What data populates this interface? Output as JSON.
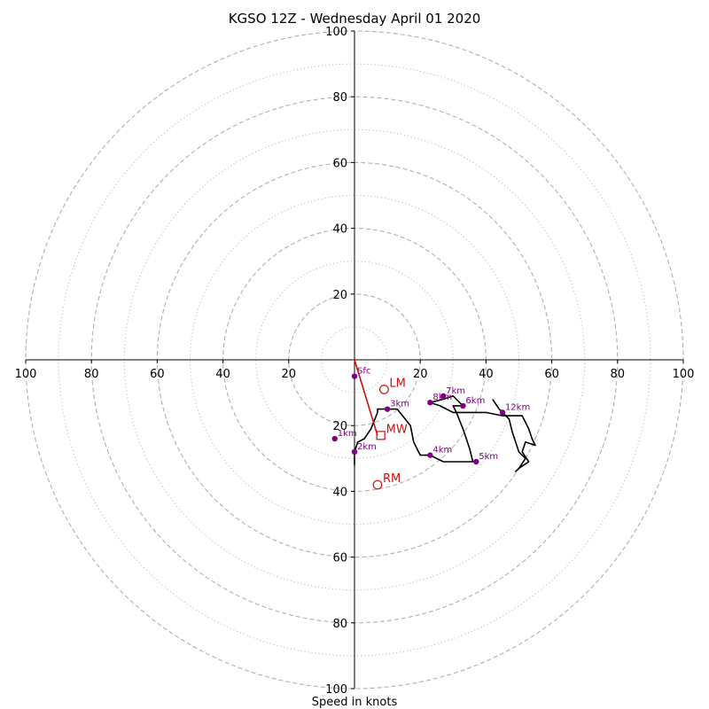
{
  "chart_data": {
    "type": "hodograph",
    "title": "KGSO 12Z - Wednesday April 01 2020",
    "xlabel": "Speed in knots",
    "range": [
      -100,
      100
    ],
    "ring_major": [
      20,
      40,
      60,
      80,
      100
    ],
    "ring_minor": [
      10,
      30,
      50,
      70,
      90
    ],
    "tick_values": [
      20,
      40,
      60,
      80,
      100
    ],
    "tick_labels": [
      "20",
      "40",
      "60",
      "80",
      "100"
    ],
    "grid": true,
    "colors": {
      "hodograph": "#000000",
      "markers": "#800080",
      "motion": "#cc1111",
      "grid": "#b0b0b0",
      "axis": "#000000"
    },
    "hodograph_trace": [
      [
        0,
        -32
      ],
      [
        0,
        -28
      ],
      [
        1,
        -25
      ],
      [
        3,
        -24
      ],
      [
        5,
        -21
      ],
      [
        7,
        -16
      ],
      [
        7,
        -15
      ],
      [
        10,
        -15
      ],
      [
        13,
        -15
      ],
      [
        17,
        -20
      ],
      [
        18,
        -25
      ],
      [
        20,
        -29
      ],
      [
        23,
        -29
      ],
      [
        27,
        -31
      ],
      [
        31,
        -31
      ],
      [
        33,
        -31
      ],
      [
        36,
        -31
      ],
      [
        35,
        -27
      ],
      [
        33,
        -21
      ],
      [
        31,
        -16
      ],
      [
        30,
        -14
      ],
      [
        33,
        -14
      ],
      [
        30,
        -11
      ],
      [
        27,
        -12
      ],
      [
        23,
        -13
      ],
      [
        23,
        -13
      ],
      [
        26,
        -14
      ],
      [
        30,
        -16
      ],
      [
        40,
        -16
      ],
      [
        45,
        -17
      ],
      [
        51,
        -17
      ],
      [
        53,
        -21
      ],
      [
        54,
        -24
      ],
      [
        55,
        -26
      ],
      [
        52,
        -25
      ],
      [
        51,
        -28
      ],
      [
        53,
        -31
      ],
      [
        50,
        -33
      ],
      [
        49,
        -34
      ],
      [
        50,
        -33
      ],
      [
        52,
        -30
      ],
      [
        50,
        -28
      ],
      [
        48,
        -22
      ],
      [
        47,
        -18
      ],
      [
        44,
        -15
      ],
      [
        42,
        -12
      ]
    ],
    "height_markers": [
      {
        "label": "Sfc",
        "u": 0,
        "v": -5
      },
      {
        "label": "1km",
        "u": -6,
        "v": -24
      },
      {
        "label": "2km",
        "u": 0,
        "v": -28
      },
      {
        "label": "3km",
        "u": 10,
        "v": -15
      },
      {
        "label": "4km",
        "u": 23,
        "v": -29
      },
      {
        "label": "5km",
        "u": 37,
        "v": -31
      },
      {
        "label": "6km",
        "u": 33,
        "v": -14
      },
      {
        "label": "7km",
        "u": 27,
        "v": -11
      },
      {
        "label": "8km",
        "u": 23,
        "v": -13
      },
      {
        "label": "12km",
        "u": 45,
        "v": -16
      }
    ],
    "storm_motion": [
      {
        "label": "LM",
        "u": 9,
        "v": -9,
        "marker": "circle"
      },
      {
        "label": "MW",
        "u": 8,
        "v": -23,
        "marker": "square"
      },
      {
        "label": "RM",
        "u": 7,
        "v": -38,
        "marker": "circle"
      }
    ],
    "shear_vector": {
      "from": [
        0,
        0
      ],
      "to": [
        7,
        -23
      ]
    }
  }
}
